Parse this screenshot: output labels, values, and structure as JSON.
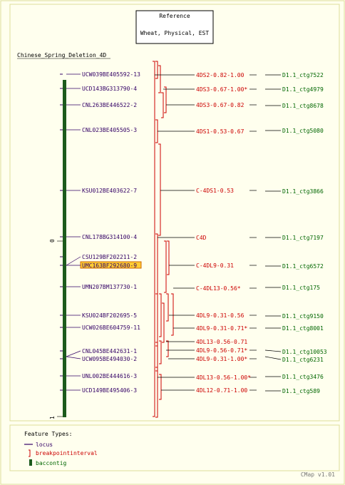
{
  "reference": {
    "title": "Reference",
    "subtitle": "Wheat, Physical, EST"
  },
  "map_name": "Chinese_Spring_Deletion_4D",
  "scale": {
    "start": "0",
    "end": "1"
  },
  "loci": [
    "UCW039BE405592-13",
    "UCD143BG313790-4",
    "CNL263BE446522-2",
    "CNL023BE405505-3",
    "KSU012BE403622-7",
    "CNL178BG314100-4",
    "CSU129BF202211-2",
    "UMC163BF292680-9",
    "UMN207BM137730-1",
    "KSU024BF202695-5",
    "UCW026BE604759-11",
    "CNL045BE442631-1",
    "UCW095BE494030-2",
    "UNL002BE444616-3",
    "UCD149BE495406-3"
  ],
  "highlighted_locus": "UMC163BF292680-9",
  "bins": [
    "4DS2-0.82-1.00",
    "4DS3-0.67-1.00*",
    "4DS3-0.67-0.82",
    "4DS1-0.53-0.67",
    "C-4DS1-0.53",
    "C4D",
    "C-4DL9-0.31",
    "C-4DL13-0.56*",
    "4DL9-0.31-0.56",
    "4DL9-0.31-0.71*",
    "4DL13-0.56-0.71",
    "4DL9-0.56-0.71*",
    "4DL9-0.31-1.00*",
    "4DL13-0.56-1.00*",
    "4DL12-0.71-1.00"
  ],
  "contigs": [
    "D1.1_ctg7522",
    "D1.1_ctg4979",
    "D1.1_ctg8678",
    "D1.1_ctg5080",
    "D1.1_ctg3866",
    "D1.1_ctg7197",
    "D1.1_ctg6572",
    "D1.1_ctg175",
    "D1.1_ctg9150",
    "D1.1_ctg8001",
    "D1.1_ctg10053",
    "D1.1_ctg6231",
    "D1.1_ctg3476",
    "D1.1_ctg589"
  ],
  "legend": {
    "title": "Feature Types:",
    "items": [
      "locus",
      "breakpointinterval",
      "baccontig"
    ]
  },
  "footer": "CMap v1.01",
  "colors": {
    "background": "#ffffee",
    "locus": "#330066",
    "breakpoint": "#cc0000",
    "contig_text": "#006600",
    "contig_bar": "#1c5a1c",
    "highlight": "#ffcc33",
    "panel_border": "#dddd99"
  }
}
